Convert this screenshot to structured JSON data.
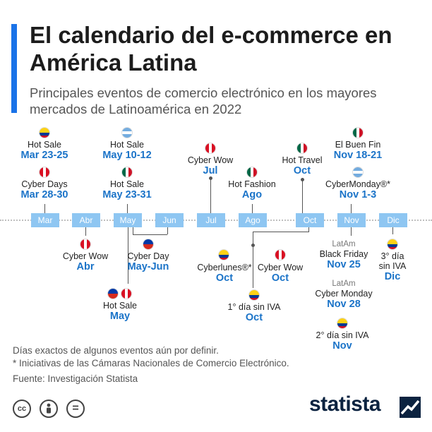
{
  "header": {
    "title": "El calendario del e-commerce en América Latina",
    "subtitle": "Principales eventos de comercio electrónico en los mayores mercados de Latinoamérica en 2022"
  },
  "months": [
    "Mar",
    "Abr",
    "May",
    "Jun",
    "Jul",
    "Ago",
    "Oct",
    "Nov",
    "Dic"
  ],
  "events": {
    "mar_hot_sale": {
      "label": "Hot Sale",
      "date": "Mar 23-25",
      "flag": "colombia"
    },
    "mar_cyber_days": {
      "label": "Cyber Days",
      "date": "Mar 28-30",
      "flag": "peru"
    },
    "abr_cyber_wow": {
      "label": "Cyber Wow",
      "date": "Abr",
      "flag": "peru"
    },
    "may_hot_sale_ar": {
      "label": "Hot Sale",
      "date": "May 10-12",
      "flag": "argentina"
    },
    "may_hot_sale_mx": {
      "label": "Hot Sale",
      "date": "May 23-31",
      "flag": "mexico"
    },
    "may_hot_sale_bottom": {
      "label": "Hot Sale",
      "date": "May",
      "flags": [
        "chile",
        "peru"
      ]
    },
    "cyber_day": {
      "label": "Cyber Day",
      "date": "May-Jun",
      "flag": "chile"
    },
    "jul_cyber_wow": {
      "label": "Cyber Wow",
      "date": "Jul",
      "flag": "peru"
    },
    "ago_hot_fashion": {
      "label": "Hot Fashion",
      "date": "Ago",
      "flag": "mexico"
    },
    "oct_hot_travel": {
      "label": "Hot Travel",
      "date": "Oct",
      "flag": "mexico"
    },
    "oct_cyberlunes": {
      "label": "Cyberlunes®*",
      "date": "Oct",
      "flag": "colombia"
    },
    "oct_cyber_wow": {
      "label": "Cyber Wow",
      "date": "Oct",
      "flag": "peru"
    },
    "oct_dia_sin_iva": {
      "label": "1° día sin IVA",
      "date": "Oct",
      "flag": "colombia"
    },
    "nov_buen_fin": {
      "label": "El Buen Fin",
      "date": "Nov 18-21",
      "flag": "mexico"
    },
    "nov_cybermonday": {
      "label": "CyberMonday®*",
      "date": "Nov 1-3",
      "flag": "argentina"
    },
    "nov_black_friday": {
      "region": "LatAm",
      "label": "Black Friday",
      "date": "Nov 25"
    },
    "nov_cyber_monday": {
      "region": "LatAm",
      "label": "Cyber Monday",
      "date": "Nov 28"
    },
    "nov_dia_sin_iva": {
      "label": "2° día sin IVA",
      "date": "Nov",
      "flag": "colombia"
    },
    "dic_dia_sin_iva": {
      "label_line1": "3° día",
      "label_line2": "sin IVA",
      "date": "Dic",
      "flag": "colombia"
    }
  },
  "footer": {
    "note1": "Días exactos de algunos eventos aún por definir.",
    "note2": "* Iniciativas de las Cámaras Nacionales de Comercio Electrónico.",
    "source": "Fuente: Investigación Statista",
    "license_icons": [
      "cc",
      "by",
      "nd"
    ],
    "cc_text": "cc",
    "nd_text": "=",
    "brand": "statista"
  },
  "colors": {
    "accent": "#1a73e8",
    "month_box": "#8ec6f2",
    "date_text": "#1a73c8",
    "brand_dark": "#0c2340"
  }
}
